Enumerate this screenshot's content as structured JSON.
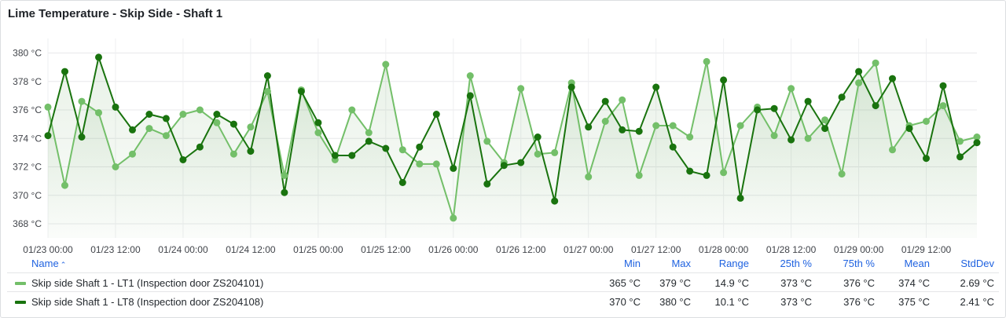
{
  "panel": {
    "title": "Lime Temperature - Skip Side - Shaft 1"
  },
  "chart_data": {
    "type": "line",
    "ylabel_unit": "°C",
    "ylim": [
      367,
      381
    ],
    "y_ticks": [
      "380 °C",
      "378 °C",
      "376 °C",
      "374 °C",
      "372 °C",
      "370 °C",
      "368 °C"
    ],
    "y_tick_values": [
      380,
      378,
      376,
      374,
      372,
      370,
      368
    ],
    "x_ticks": [
      "01/23 00:00",
      "01/23 12:00",
      "01/24 00:00",
      "01/24 12:00",
      "01/25 00:00",
      "01/25 12:00",
      "01/26 00:00",
      "01/26 12:00",
      "01/27 00:00",
      "01/27 12:00",
      "01/28 00:00",
      "01/28 12:00",
      "01/29 00:00",
      "01/29 12:00"
    ],
    "grid": true,
    "x": [
      "01/23 00:00",
      "01/23 03:00",
      "01/23 06:00",
      "01/23 09:00",
      "01/23 12:00",
      "01/23 15:00",
      "01/23 18:00",
      "01/23 21:00",
      "01/24 00:00",
      "01/24 03:00",
      "01/24 06:00",
      "01/24 09:00",
      "01/24 12:00",
      "01/24 15:00",
      "01/24 18:00",
      "01/24 21:00",
      "01/25 00:00",
      "01/25 03:00",
      "01/25 06:00",
      "01/25 09:00",
      "01/25 12:00",
      "01/25 15:00",
      "01/25 18:00",
      "01/25 21:00",
      "01/26 00:00",
      "01/26 03:00",
      "01/26 06:00",
      "01/26 09:00",
      "01/26 12:00",
      "01/26 15:00",
      "01/26 18:00",
      "01/26 21:00",
      "01/27 00:00",
      "01/27 03:00",
      "01/27 06:00",
      "01/27 09:00",
      "01/27 12:00",
      "01/27 15:00",
      "01/27 18:00",
      "01/27 21:00",
      "01/28 00:00",
      "01/28 03:00",
      "01/28 06:00",
      "01/28 09:00",
      "01/28 12:00",
      "01/28 15:00",
      "01/28 18:00",
      "01/28 21:00",
      "01/29 00:00",
      "01/29 03:00",
      "01/29 06:00",
      "01/29 09:00",
      "01/29 12:00",
      "01/29 15:00",
      "01/29 18:00",
      "01/29 21:00"
    ],
    "series": [
      {
        "name": "Skip side Shaft 1 - LT1 (Inspection door ZS204101)",
        "color": "#73bf69",
        "values": [
          376.2,
          370.7,
          376.6,
          375.8,
          372.0,
          372.9,
          374.7,
          374.2,
          375.7,
          376.0,
          375.1,
          372.9,
          374.8,
          377.3,
          371.4,
          377.4,
          374.4,
          372.5,
          376.0,
          374.4,
          379.2,
          373.2,
          372.2,
          372.2,
          368.4,
          378.4,
          373.8,
          372.3,
          377.5,
          372.9,
          373.0,
          377.9,
          371.3,
          375.2,
          376.7,
          371.4,
          374.9,
          374.9,
          374.1,
          379.4,
          371.6,
          374.9,
          376.2,
          374.2,
          377.5,
          374.0,
          375.3,
          371.5,
          377.9,
          379.3,
          373.2,
          374.9,
          375.2,
          376.3,
          373.8,
          374.1
        ]
      },
      {
        "name": "Skip side Shaft 1 - LT8 (Inspection door ZS204108)",
        "color": "#19730e",
        "values": [
          374.2,
          378.7,
          374.1,
          379.7,
          376.2,
          374.6,
          375.7,
          375.4,
          372.5,
          373.4,
          375.7,
          375.0,
          373.1,
          378.4,
          370.2,
          377.3,
          375.1,
          372.8,
          372.8,
          373.8,
          373.3,
          370.9,
          373.4,
          375.7,
          371.9,
          377.0,
          370.8,
          372.1,
          372.3,
          374.1,
          369.6,
          377.6,
          374.8,
          376.6,
          374.6,
          374.5,
          377.6,
          373.4,
          371.7,
          371.4,
          378.1,
          369.8,
          376.0,
          376.1,
          373.9,
          376.6,
          374.7,
          376.9,
          378.7,
          376.3,
          378.2,
          374.7,
          372.6,
          377.7,
          372.7,
          373.7
        ]
      }
    ]
  },
  "legend": {
    "headers": {
      "name": "Name",
      "min": "Min",
      "max": "Max",
      "range": "Range",
      "p25": "25th %",
      "p75": "75th %",
      "mean": "Mean",
      "stddev": "StdDev"
    },
    "rows": [
      {
        "name": "Skip side Shaft 1 - LT1 (Inspection door ZS204101)",
        "color": "#73bf69",
        "min": "365 °C",
        "max": "379 °C",
        "range": "14.9 °C",
        "p25": "373 °C",
        "p75": "376 °C",
        "mean": "374 °C",
        "stddev": "2.69 °C"
      },
      {
        "name": "Skip side Shaft 1 - LT8 (Inspection door ZS204108)",
        "color": "#19730e",
        "min": "370 °C",
        "max": "380 °C",
        "range": "10.1 °C",
        "p25": "373 °C",
        "p75": "376 °C",
        "mean": "375 °C",
        "stddev": "2.41 °C"
      }
    ]
  }
}
